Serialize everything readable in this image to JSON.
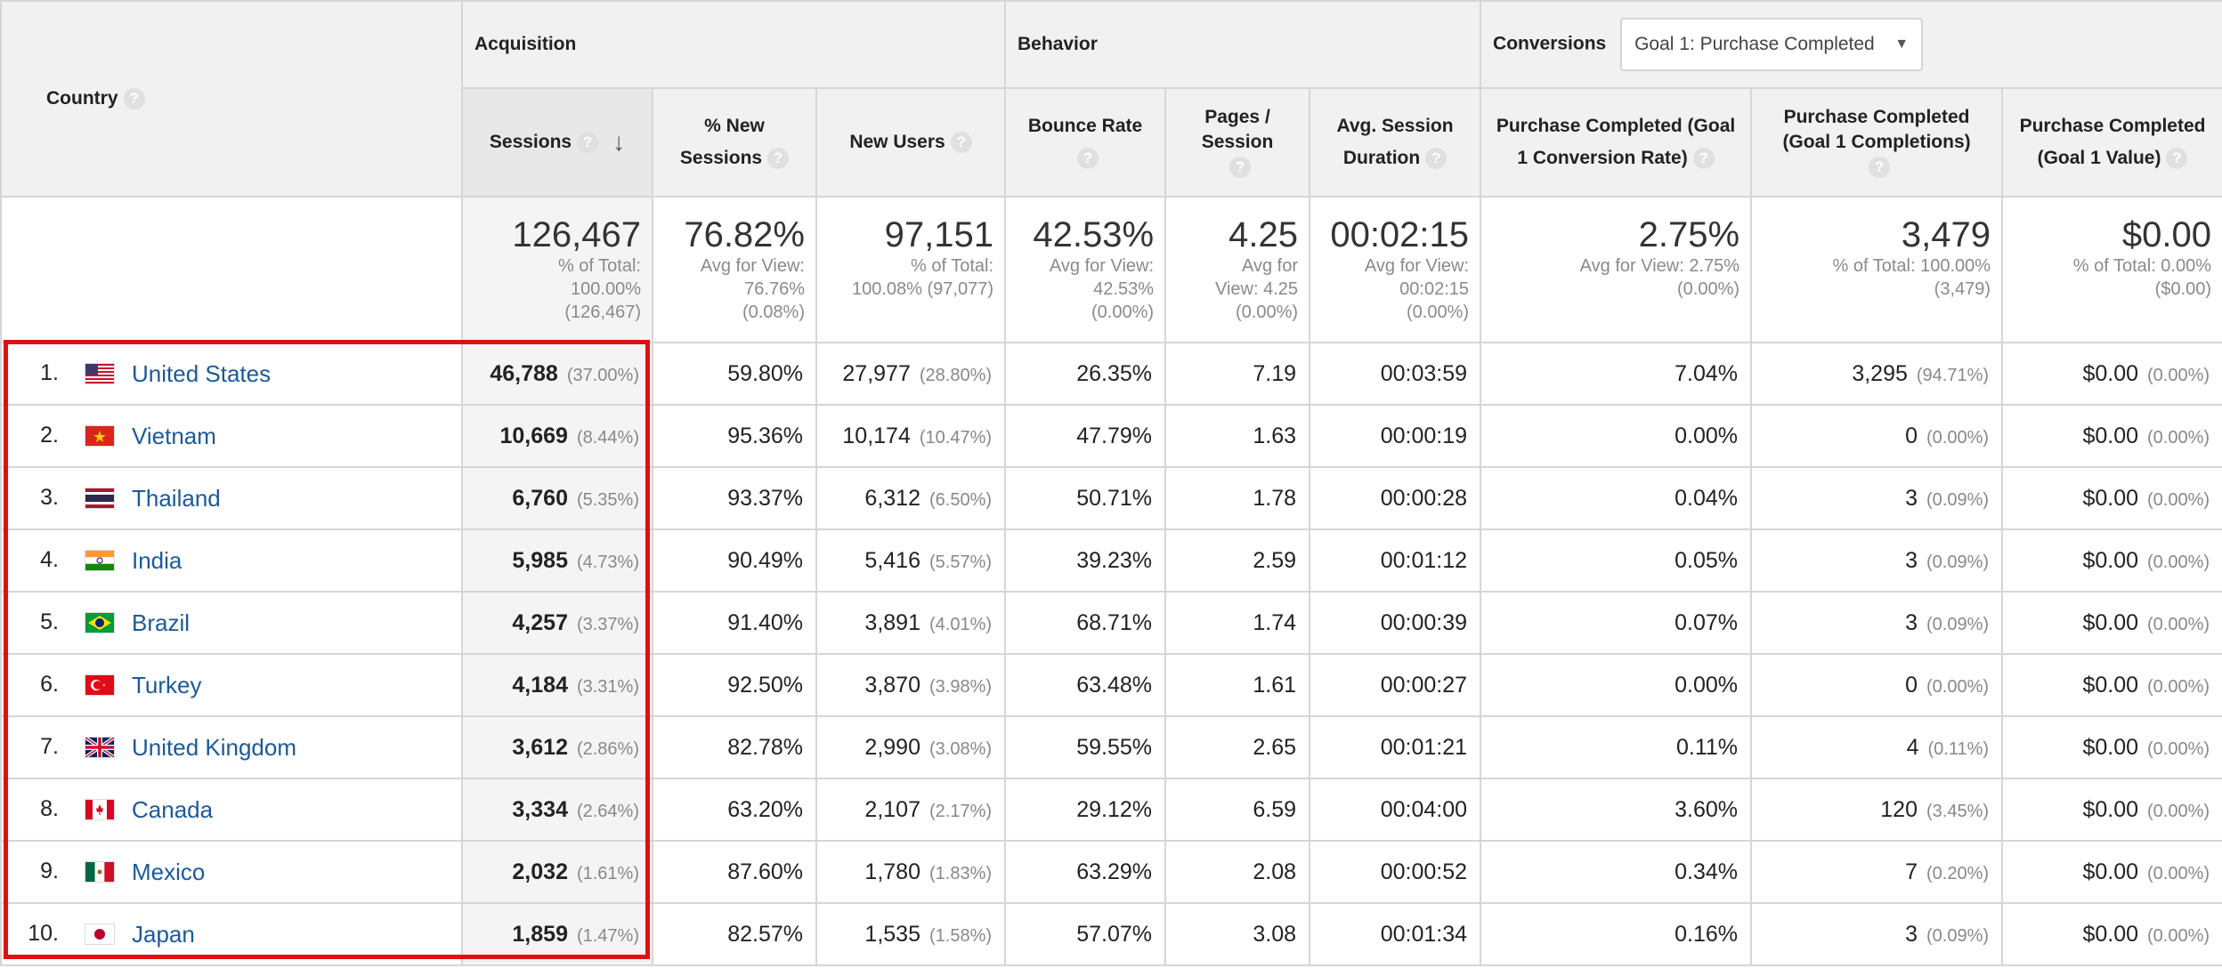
{
  "header": {
    "country_label": "Country",
    "help_glyph": "?",
    "sort_glyph": "↓",
    "acquisition_label": "Acquisition",
    "behavior_label": "Behavior",
    "conversions_label": "Conversions",
    "goal_select_value": "Goal 1: Purchase Completed",
    "caret_glyph": "▼",
    "columns": {
      "sessions": "Sessions",
      "new_sessions_1": "% New",
      "new_sessions_2": "Sessions",
      "new_users": "New Users",
      "bounce_rate": "Bounce Rate",
      "pages_session_1": "Pages /",
      "pages_session_2": "Session",
      "avg_duration_1": "Avg. Session",
      "avg_duration_2": "Duration",
      "conv_rate_1": "Purchase Completed (Goal",
      "conv_rate_2": "1 Conversion Rate)",
      "completions_1": "Purchase Completed",
      "completions_2": "(Goal 1 Completions)",
      "value_1": "Purchase Completed",
      "value_2": "(Goal 1 Value)"
    }
  },
  "summary": {
    "sessions": {
      "big": "126,467",
      "l1": "% of Total:",
      "l2": "100.00%",
      "l3": "(126,467)"
    },
    "new_sessions": {
      "big": "76.82%",
      "l1": "Avg for View:",
      "l2": "76.76%",
      "l3": "(0.08%)"
    },
    "new_users": {
      "big": "97,151",
      "l1": "% of Total:",
      "l2": "100.08% (97,077)"
    },
    "bounce_rate": {
      "big": "42.53%",
      "l1": "Avg for View:",
      "l2": "42.53%",
      "l3": "(0.00%)"
    },
    "pages_session": {
      "big": "4.25",
      "l1": "Avg for",
      "l2": "View: 4.25",
      "l3": "(0.00%)"
    },
    "avg_duration": {
      "big": "00:02:15",
      "l1": "Avg for View:",
      "l2": "00:02:15",
      "l3": "(0.00%)"
    },
    "conv_rate": {
      "big": "2.75%",
      "l1": "Avg for View: 2.75%",
      "l2": "(0.00%)"
    },
    "completions": {
      "big": "3,479",
      "l1": "% of Total: 100.00%",
      "l2": "(3,479)"
    },
    "value": {
      "big": "$0.00",
      "l1": "% of Total: 0.00%",
      "l2": "($0.00)"
    }
  },
  "rows": [
    {
      "rank": "1.",
      "country": "United States",
      "flag": "us-flag-icon",
      "sessions": "46,788",
      "sessions_pct": "(37.00%)",
      "new_sessions": "59.80%",
      "new_users": "27,977",
      "new_users_pct": "(28.80%)",
      "bounce": "26.35%",
      "pages": "7.19",
      "duration": "00:03:59",
      "conv_rate": "7.04%",
      "completions": "3,295",
      "completions_pct": "(94.71%)",
      "value": "$0.00",
      "value_pct": "(0.00%)"
    },
    {
      "rank": "2.",
      "country": "Vietnam",
      "flag": "vn-flag-icon",
      "sessions": "10,669",
      "sessions_pct": "(8.44%)",
      "new_sessions": "95.36%",
      "new_users": "10,174",
      "new_users_pct": "(10.47%)",
      "bounce": "47.79%",
      "pages": "1.63",
      "duration": "00:00:19",
      "conv_rate": "0.00%",
      "completions": "0",
      "completions_pct": "(0.00%)",
      "value": "$0.00",
      "value_pct": "(0.00%)"
    },
    {
      "rank": "3.",
      "country": "Thailand",
      "flag": "th-flag-icon",
      "sessions": "6,760",
      "sessions_pct": "(5.35%)",
      "new_sessions": "93.37%",
      "new_users": "6,312",
      "new_users_pct": "(6.50%)",
      "bounce": "50.71%",
      "pages": "1.78",
      "duration": "00:00:28",
      "conv_rate": "0.04%",
      "completions": "3",
      "completions_pct": "(0.09%)",
      "value": "$0.00",
      "value_pct": "(0.00%)"
    },
    {
      "rank": "4.",
      "country": "India",
      "flag": "in-flag-icon",
      "sessions": "5,985",
      "sessions_pct": "(4.73%)",
      "new_sessions": "90.49%",
      "new_users": "5,416",
      "new_users_pct": "(5.57%)",
      "bounce": "39.23%",
      "pages": "2.59",
      "duration": "00:01:12",
      "conv_rate": "0.05%",
      "completions": "3",
      "completions_pct": "(0.09%)",
      "value": "$0.00",
      "value_pct": "(0.00%)"
    },
    {
      "rank": "5.",
      "country": "Brazil",
      "flag": "br-flag-icon",
      "sessions": "4,257",
      "sessions_pct": "(3.37%)",
      "new_sessions": "91.40%",
      "new_users": "3,891",
      "new_users_pct": "(4.01%)",
      "bounce": "68.71%",
      "pages": "1.74",
      "duration": "00:00:39",
      "conv_rate": "0.07%",
      "completions": "3",
      "completions_pct": "(0.09%)",
      "value": "$0.00",
      "value_pct": "(0.00%)"
    },
    {
      "rank": "6.",
      "country": "Turkey",
      "flag": "tr-flag-icon",
      "sessions": "4,184",
      "sessions_pct": "(3.31%)",
      "new_sessions": "92.50%",
      "new_users": "3,870",
      "new_users_pct": "(3.98%)",
      "bounce": "63.48%",
      "pages": "1.61",
      "duration": "00:00:27",
      "conv_rate": "0.00%",
      "completions": "0",
      "completions_pct": "(0.00%)",
      "value": "$0.00",
      "value_pct": "(0.00%)"
    },
    {
      "rank": "7.",
      "country": "United Kingdom",
      "flag": "gb-flag-icon",
      "sessions": "3,612",
      "sessions_pct": "(2.86%)",
      "new_sessions": "82.78%",
      "new_users": "2,990",
      "new_users_pct": "(3.08%)",
      "bounce": "59.55%",
      "pages": "2.65",
      "duration": "00:01:21",
      "conv_rate": "0.11%",
      "completions": "4",
      "completions_pct": "(0.11%)",
      "value": "$0.00",
      "value_pct": "(0.00%)"
    },
    {
      "rank": "8.",
      "country": "Canada",
      "flag": "ca-flag-icon",
      "sessions": "3,334",
      "sessions_pct": "(2.64%)",
      "new_sessions": "63.20%",
      "new_users": "2,107",
      "new_users_pct": "(2.17%)",
      "bounce": "29.12%",
      "pages": "6.59",
      "duration": "00:04:00",
      "conv_rate": "3.60%",
      "completions": "120",
      "completions_pct": "(3.45%)",
      "value": "$0.00",
      "value_pct": "(0.00%)"
    },
    {
      "rank": "9.",
      "country": "Mexico",
      "flag": "mx-flag-icon",
      "sessions": "2,032",
      "sessions_pct": "(1.61%)",
      "new_sessions": "87.60%",
      "new_users": "1,780",
      "new_users_pct": "(1.83%)",
      "bounce": "63.29%",
      "pages": "2.08",
      "duration": "00:00:52",
      "conv_rate": "0.34%",
      "completions": "7",
      "completions_pct": "(0.20%)",
      "value": "$0.00",
      "value_pct": "(0.00%)"
    },
    {
      "rank": "10.",
      "country": "Japan",
      "flag": "jp-flag-icon",
      "sessions": "1,859",
      "sessions_pct": "(1.47%)",
      "new_sessions": "82.57%",
      "new_users": "1,535",
      "new_users_pct": "(1.58%)",
      "bounce": "57.07%",
      "pages": "3.08",
      "duration": "00:01:34",
      "conv_rate": "0.16%",
      "completions": "3",
      "completions_pct": "(0.09%)",
      "value": "$0.00",
      "value_pct": "(0.00%)"
    }
  ],
  "colors": {
    "highlight": "#e01010",
    "link": "#1a5a9c",
    "header_bg": "#f1f1f1"
  }
}
